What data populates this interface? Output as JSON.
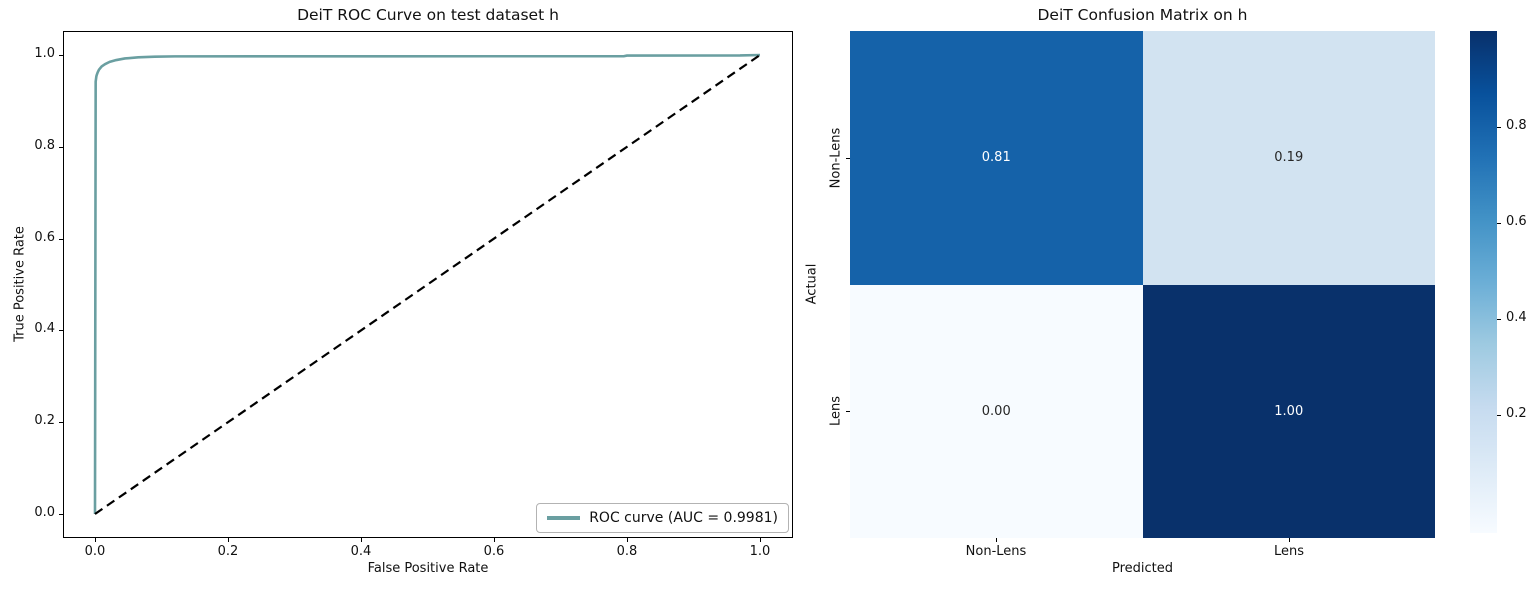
{
  "figure": {
    "background": "#ffffff"
  },
  "roc_plot": {
    "title": "DeiT ROC Curve on test dataset h",
    "xlabel": "False Positive Rate",
    "ylabel": "True Positive Rate",
    "x_tick_labels": [
      "0.0",
      "0.2",
      "0.4",
      "0.6",
      "0.8",
      "1.0"
    ],
    "y_tick_labels": [
      "1.0",
      "0.8",
      "0.6",
      "0.4",
      "0.2",
      "0.0"
    ],
    "legend_label": "ROC curve (AUC = 0.9981)",
    "line_color": "#6a9fa1",
    "diagonal_color": "#000000",
    "auc": "0.9981"
  },
  "confusion_matrix": {
    "title": "DeiT Confusion Matrix on h",
    "xlabel": "Predicted",
    "ylabel": "Actual",
    "col_labels": [
      "Non-Lens",
      "Lens"
    ],
    "row_labels": [
      "Non-Lens",
      "Lens"
    ],
    "cells": [
      [
        "0.81",
        "0.19"
      ],
      [
        "0.00",
        "1.00"
      ]
    ],
    "cell_colors": [
      [
        "#1562a9",
        "#d2e3f1"
      ],
      [
        "#f7fbff",
        "#09316b"
      ]
    ],
    "cell_text_colors": [
      [
        "#ffffff",
        "#262626"
      ],
      [
        "#262626",
        "#ffffff"
      ]
    ]
  },
  "colorbar": {
    "tick_labels": [
      "0.8",
      "0.6",
      "0.4",
      "0.2"
    ],
    "gradient": [
      "#f7fbff",
      "#deebf7",
      "#c6dbef",
      "#9ecae1",
      "#6baed6",
      "#4292c6",
      "#2171b5",
      "#08519c",
      "#08306b"
    ]
  },
  "chart_data": [
    {
      "type": "line",
      "title": "DeiT ROC Curve on test dataset h",
      "xlabel": "False Positive Rate",
      "ylabel": "True Positive Rate",
      "xlim": [
        0,
        1
      ],
      "ylim": [
        0,
        1
      ],
      "grid": false,
      "legend_position": "lower right",
      "series": [
        {
          "name": "ROC curve (AUC = 0.9981)",
          "color": "#6a9fa1",
          "style": "solid",
          "x": [
            0,
            0.001,
            0.002,
            0.0025,
            0.004,
            0.006,
            0.01,
            0.015,
            0.022,
            0.032,
            0.045,
            0.065,
            0.09,
            0.12,
            0.3,
            0.6,
            0.795,
            0.8,
            0.97,
            1.0
          ],
          "y": [
            0,
            0.942,
            0.953,
            0.956,
            0.962,
            0.968,
            0.975,
            0.98,
            0.985,
            0.989,
            0.9925,
            0.995,
            0.9963,
            0.997,
            0.9972,
            0.9973,
            0.9973,
            0.9988,
            0.999,
            1.0
          ]
        },
        {
          "name": "chance-diagonal",
          "color": "#000000",
          "style": "dashed",
          "x": [
            0,
            1
          ],
          "y": [
            0,
            1
          ]
        }
      ]
    },
    {
      "type": "heatmap",
      "title": "DeiT Confusion Matrix on h",
      "xlabel": "Predicted",
      "ylabel": "Actual",
      "x_categories": [
        "Non-Lens",
        "Lens"
      ],
      "y_categories": [
        "Non-Lens",
        "Lens"
      ],
      "values": [
        [
          0.81,
          0.19
        ],
        [
          0.0,
          1.0
        ]
      ],
      "vmin": 0,
      "vmax": 1,
      "colormap": "Blues",
      "colorbar_ticks": [
        0.2,
        0.4,
        0.6,
        0.8
      ]
    }
  ]
}
